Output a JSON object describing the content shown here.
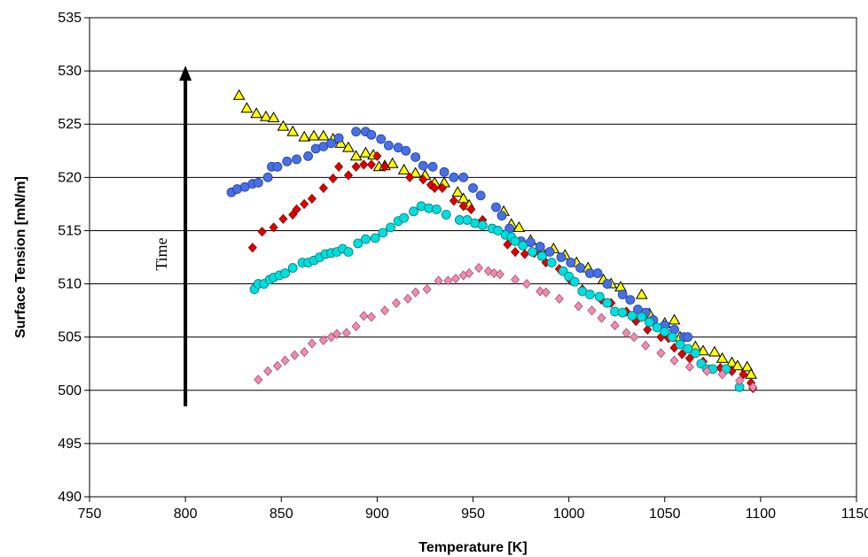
{
  "chart_data": {
    "type": "scatter",
    "title": "",
    "xlabel": "Temperature [K]",
    "ylabel": "Surface Tension [mN/m]",
    "xlim": [
      750,
      1150
    ],
    "ylim": [
      490,
      535
    ],
    "xticks": [
      750,
      800,
      850,
      900,
      950,
      1000,
      1050,
      1100,
      1150
    ],
    "yticks": [
      490,
      495,
      500,
      505,
      510,
      515,
      520,
      525,
      530,
      535
    ],
    "grid": "horizontal",
    "legend": "none",
    "annotation": {
      "text": "Time",
      "arrow_from": [
        800,
        498.5
      ],
      "arrow_to": [
        800,
        530.5
      ]
    },
    "series": [
      {
        "marker": "triangle",
        "color": "#FFFF00",
        "stroke": "#000000",
        "points": [
          [
            828,
            527.7
          ],
          [
            832,
            526.5
          ],
          [
            837,
            526
          ],
          [
            842,
            525.7
          ],
          [
            846,
            525.6
          ],
          [
            851,
            524.8
          ],
          [
            856,
            524.3
          ],
          [
            862,
            523.8
          ],
          [
            867,
            523.9
          ],
          [
            872,
            523.9
          ],
          [
            877,
            523.6
          ],
          [
            881,
            523.2
          ],
          [
            885,
            522.8
          ],
          [
            889,
            522
          ],
          [
            894,
            522.3
          ],
          [
            898,
            522.1
          ],
          [
            901,
            521
          ],
          [
            904,
            521.1
          ],
          [
            908,
            521.3
          ],
          [
            914,
            520.7
          ],
          [
            920,
            520.4
          ],
          [
            925,
            520.2
          ],
          [
            930,
            519.5
          ],
          [
            935,
            519.5
          ],
          [
            942,
            518.6
          ],
          [
            945,
            518
          ],
          [
            948,
            517.4
          ],
          [
            966,
            516.8
          ],
          [
            970,
            515.6
          ],
          [
            974,
            515.3
          ],
          [
            980,
            514.1
          ],
          [
            985,
            513.4
          ],
          [
            992,
            513.3
          ],
          [
            998,
            512.7
          ],
          [
            1004,
            512
          ],
          [
            1010,
            511.5
          ],
          [
            1018,
            510.4
          ],
          [
            1022,
            510
          ],
          [
            1027,
            509.7
          ],
          [
            1038,
            509
          ],
          [
            1042,
            507.2
          ],
          [
            1050,
            506.3
          ],
          [
            1055,
            506.6
          ],
          [
            1058,
            505
          ],
          [
            1066,
            504.1
          ],
          [
            1070,
            503.7
          ],
          [
            1076,
            503.6
          ],
          [
            1080,
            503
          ],
          [
            1085,
            502.6
          ],
          [
            1088,
            502.3
          ],
          [
            1093,
            502.2
          ],
          [
            1095,
            501.5
          ]
        ]
      },
      {
        "marker": "circle",
        "color": "#4A6FE3",
        "stroke": "#1A3FA8",
        "points": [
          [
            824,
            518.6
          ],
          [
            827,
            518.9
          ],
          [
            831,
            519.1
          ],
          [
            835,
            519.4
          ],
          [
            838,
            519.5
          ],
          [
            843,
            520
          ],
          [
            845,
            521
          ],
          [
            848,
            521
          ],
          [
            853,
            521.5
          ],
          [
            858,
            521.7
          ],
          [
            864,
            522
          ],
          [
            868,
            522.7
          ],
          [
            872,
            522.9
          ],
          [
            876,
            523.2
          ],
          [
            880,
            523.7
          ],
          [
            889,
            524.3
          ],
          [
            894,
            524.3
          ],
          [
            897,
            524
          ],
          [
            902,
            523.6
          ],
          [
            906,
            523
          ],
          [
            911,
            522.8
          ],
          [
            915,
            522.5
          ],
          [
            920,
            521.9
          ],
          [
            924,
            521.1
          ],
          [
            929,
            521
          ],
          [
            935,
            520.5
          ],
          [
            940,
            520
          ],
          [
            945,
            520
          ],
          [
            950,
            519
          ],
          [
            954,
            518.3
          ],
          [
            962,
            517.2
          ],
          [
            965,
            516.4
          ],
          [
            969,
            515.2
          ],
          [
            975,
            514
          ],
          [
            980,
            513.9
          ],
          [
            985,
            513.5
          ],
          [
            990,
            513
          ],
          [
            996,
            512.5
          ],
          [
            1001,
            512
          ],
          [
            1006,
            511.5
          ],
          [
            1011,
            511
          ],
          [
            1015,
            511
          ],
          [
            1020,
            510
          ],
          [
            1028,
            509
          ],
          [
            1032,
            508.5
          ],
          [
            1036,
            507.6
          ],
          [
            1040,
            507.3
          ],
          [
            1044,
            506.6
          ],
          [
            1050,
            506.1
          ],
          [
            1055,
            505.7
          ],
          [
            1060,
            505
          ],
          [
            1062,
            505
          ]
        ]
      },
      {
        "marker": "diamond",
        "color": "#E00000",
        "stroke": "#800000",
        "points": [
          [
            835,
            513.4
          ],
          [
            840,
            514.9
          ],
          [
            846,
            515.3
          ],
          [
            851,
            516.1
          ],
          [
            856,
            516.5
          ],
          [
            858,
            517
          ],
          [
            862,
            517.5
          ],
          [
            866,
            518
          ],
          [
            872,
            519
          ],
          [
            877,
            519.9
          ],
          [
            880,
            521
          ],
          [
            885,
            520.2
          ],
          [
            889,
            521
          ],
          [
            893,
            521.2
          ],
          [
            897,
            521.2
          ],
          [
            900,
            522
          ],
          [
            904,
            521
          ],
          [
            917,
            520
          ],
          [
            924,
            519.8
          ],
          [
            928,
            519.3
          ],
          [
            930,
            519
          ],
          [
            934,
            519
          ],
          [
            940,
            517.8
          ],
          [
            945,
            517.3
          ],
          [
            949,
            517
          ],
          [
            955,
            516
          ],
          [
            968,
            513.7
          ],
          [
            972,
            513
          ],
          [
            977,
            512.8
          ],
          [
            982,
            512.9
          ],
          [
            988,
            512
          ],
          [
            995,
            511.4
          ],
          [
            1001,
            510.3
          ],
          [
            1007,
            509.5
          ],
          [
            1017,
            508.5
          ],
          [
            1022,
            508.2
          ],
          [
            1030,
            507.4
          ],
          [
            1035,
            506.5
          ],
          [
            1041,
            505.7
          ],
          [
            1048,
            505
          ],
          [
            1052,
            504.9
          ],
          [
            1055,
            504
          ],
          [
            1059,
            503.4
          ],
          [
            1063,
            503
          ],
          [
            1070,
            502.7
          ],
          [
            1079,
            502.1
          ],
          [
            1085,
            501.8
          ],
          [
            1091,
            501.5
          ],
          [
            1095,
            500.7
          ],
          [
            1096,
            500.2
          ]
        ]
      },
      {
        "marker": "circle",
        "color": "#00DEDE",
        "stroke": "#007A7A",
        "points": [
          [
            836,
            509.5
          ],
          [
            838,
            510
          ],
          [
            841,
            510
          ],
          [
            844,
            510.4
          ],
          [
            846,
            510.6
          ],
          [
            849,
            510.8
          ],
          [
            852,
            511
          ],
          [
            856,
            511.5
          ],
          [
            861,
            512
          ],
          [
            864,
            512
          ],
          [
            867,
            512.2
          ],
          [
            870,
            512.5
          ],
          [
            873,
            512.8
          ],
          [
            876,
            512.9
          ],
          [
            879,
            513
          ],
          [
            882,
            513.3
          ],
          [
            885,
            513
          ],
          [
            890,
            513.8
          ],
          [
            894,
            514.2
          ],
          [
            899,
            514.3
          ],
          [
            903,
            514.8
          ],
          [
            907,
            515.3
          ],
          [
            911,
            515.9
          ],
          [
            914,
            516.2
          ],
          [
            919,
            516.8
          ],
          [
            923,
            517.3
          ],
          [
            927,
            517.1
          ],
          [
            931,
            517
          ],
          [
            936,
            516.5
          ],
          [
            943,
            516
          ],
          [
            947,
            516
          ],
          [
            951,
            515.7
          ],
          [
            955,
            515.5
          ],
          [
            960,
            515.2
          ],
          [
            963,
            515
          ],
          [
            967,
            514.6
          ],
          [
            970,
            514.4
          ],
          [
            972,
            514
          ],
          [
            976,
            513.6
          ],
          [
            981,
            513
          ],
          [
            986,
            512.6
          ],
          [
            991,
            512
          ],
          [
            997,
            511.2
          ],
          [
            1000,
            510.7
          ],
          [
            1003,
            510.2
          ],
          [
            1007,
            509.3
          ],
          [
            1011,
            509
          ],
          [
            1016,
            508.8
          ],
          [
            1020,
            508.2
          ],
          [
            1024,
            507.4
          ],
          [
            1028,
            507.3
          ],
          [
            1033,
            507
          ],
          [
            1038,
            506.9
          ],
          [
            1042,
            506.4
          ],
          [
            1046,
            505.9
          ],
          [
            1050,
            505.5
          ],
          [
            1054,
            505
          ],
          [
            1058,
            504.3
          ],
          [
            1062,
            503.9
          ],
          [
            1066,
            503.5
          ],
          [
            1069,
            502.5
          ],
          [
            1072,
            502
          ],
          [
            1075,
            502
          ],
          [
            1082,
            502
          ],
          [
            1089,
            500.3
          ]
        ]
      },
      {
        "marker": "diamond",
        "color": "#F08CB0",
        "stroke": "#A05070",
        "points": [
          [
            838,
            501
          ],
          [
            843,
            501.8
          ],
          [
            848,
            502.3
          ],
          [
            852,
            502.8
          ],
          [
            857,
            503.3
          ],
          [
            862,
            503.6
          ],
          [
            866,
            504.4
          ],
          [
            872,
            504.7
          ],
          [
            876,
            505
          ],
          [
            879,
            505.3
          ],
          [
            884,
            505.4
          ],
          [
            889,
            506
          ],
          [
            893,
            507
          ],
          [
            897,
            506.9
          ],
          [
            904,
            507.5
          ],
          [
            910,
            508.2
          ],
          [
            916,
            508.6
          ],
          [
            920,
            509.2
          ],
          [
            926,
            509.5
          ],
          [
            932,
            510.3
          ],
          [
            937,
            510.3
          ],
          [
            941,
            510.5
          ],
          [
            945,
            510.8
          ],
          [
            948,
            511
          ],
          [
            953,
            511.5
          ],
          [
            958,
            511.2
          ],
          [
            961,
            511
          ],
          [
            964,
            510.9
          ],
          [
            972,
            510.4
          ],
          [
            978,
            510
          ],
          [
            985,
            509.3
          ],
          [
            988,
            509.2
          ],
          [
            995,
            508.6
          ],
          [
            1005,
            507.9
          ],
          [
            1012,
            507.5
          ],
          [
            1017,
            506.8
          ],
          [
            1024,
            506.1
          ],
          [
            1030,
            505.4
          ],
          [
            1034,
            505
          ],
          [
            1040,
            504.2
          ],
          [
            1048,
            503.5
          ],
          [
            1055,
            502.8
          ],
          [
            1063,
            502.2
          ],
          [
            1072,
            501.8
          ],
          [
            1080,
            501.5
          ],
          [
            1089,
            500.9
          ],
          [
            1096,
            500.3
          ]
        ]
      }
    ]
  }
}
